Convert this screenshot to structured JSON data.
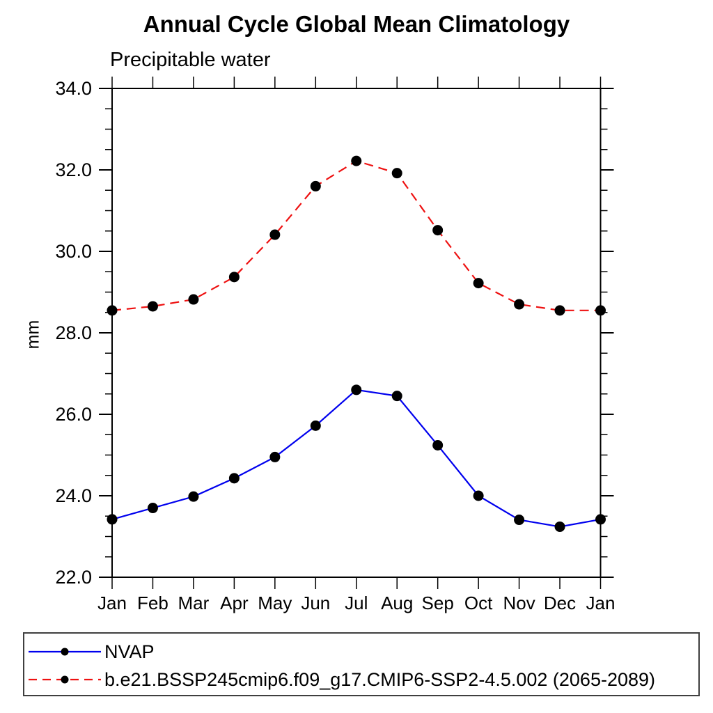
{
  "chart_data": {
    "type": "line",
    "title": "Annual Cycle Global Mean Climatology",
    "subtitle": "Precipitable water",
    "ylabel": "mm",
    "xlabel": "",
    "categories": [
      "Jan",
      "Feb",
      "Mar",
      "Apr",
      "May",
      "Jun",
      "Jul",
      "Aug",
      "Sep",
      "Oct",
      "Nov",
      "Dec",
      "Jan"
    ],
    "ylim": [
      22.0,
      34.0
    ],
    "ytick_step": 2.0,
    "yminor_step": 0.5,
    "ytick_labels": [
      "22.0",
      "24.0",
      "26.0",
      "28.0",
      "30.0",
      "32.0",
      "34.0"
    ],
    "grid": false,
    "legend_position": "bottom-left-box",
    "series": [
      {
        "name": "NVAP",
        "color": "#0000ee",
        "line_style": "solid",
        "marker": "filled-circle",
        "marker_color": "#000000",
        "values": [
          23.42,
          23.7,
          23.98,
          24.43,
          24.95,
          25.72,
          26.6,
          26.45,
          25.24,
          24.0,
          23.41,
          23.24,
          23.42
        ]
      },
      {
        "name": "b.e21.BSSP245cmip6.f09_g17.CMIP6-SSP2-4.5.002 (2065-2089)",
        "color": "#ee1111",
        "line_style": "dashed",
        "marker": "filled-circle",
        "marker_color": "#000000",
        "values": [
          28.55,
          28.65,
          28.82,
          29.37,
          30.41,
          31.6,
          32.22,
          31.92,
          30.52,
          29.22,
          28.7,
          28.55,
          28.55
        ]
      }
    ]
  }
}
